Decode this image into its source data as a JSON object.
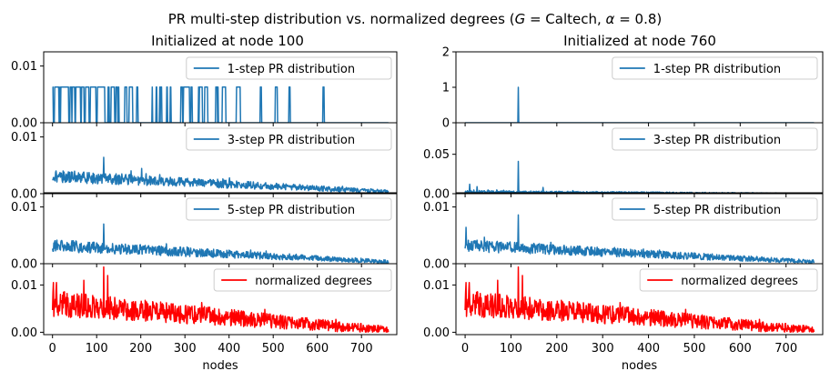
{
  "suptitle_parts": [
    "PR multi-step distribution vs. normalized degrees (",
    "G",
    " = Caltech, ",
    "α",
    " = 0.8)"
  ],
  "colors": {
    "pr": "#1f77b4",
    "degree": "#ff0000"
  },
  "chart_data": [
    {
      "type": "line",
      "column": "left",
      "title": "Initialized at node 100",
      "xlabel": "nodes",
      "xlim": [
        -20,
        780
      ],
      "xticks": [
        0,
        100,
        200,
        300,
        400,
        500,
        600,
        700
      ],
      "panels": [
        {
          "legend": "1-step PR distribution",
          "color": "#1f77b4",
          "ylim": [
            0,
            0.0125
          ],
          "yticks": [
            {
              "v": 0,
              "label": "0.00"
            },
            {
              "v": 0.01,
              "label": "0.01"
            }
          ],
          "kind": "pulses",
          "n": 762,
          "pulse_height": 0.0063,
          "pulse_max_x": 632,
          "seed": 11
        },
        {
          "legend": "3-step PR distribution",
          "color": "#1f77b4",
          "ylim": [
            0,
            0.0125
          ],
          "yticks": [
            {
              "v": 0,
              "label": "0.00"
            },
            {
              "v": 0.01,
              "label": "0.01"
            }
          ],
          "kind": "noisy",
          "n": 762,
          "base": 0.003,
          "decay": 0.0027,
          "noise": 0.0011,
          "seed": 21,
          "peaks": [
            [
              116,
              0.0064
            ]
          ]
        },
        {
          "legend": "5-step PR distribution",
          "color": "#1f77b4",
          "ylim": [
            0,
            0.0125
          ],
          "yticks": [
            {
              "v": 0,
              "label": "0.00"
            },
            {
              "v": 0.01,
              "label": "0.01"
            }
          ],
          "kind": "noisy",
          "n": 762,
          "base": 0.0031,
          "decay": 0.0028,
          "noise": 0.0011,
          "seed": 31,
          "peaks": [
            [
              116,
              0.007
            ]
          ]
        },
        {
          "legend": "normalized degrees",
          "color": "#ff0000",
          "ylim": [
            -0.0005,
            0.0145
          ],
          "yticks": [
            {
              "v": 0,
              "label": "0.00"
            },
            {
              "v": 0.01,
              "label": "0.01"
            }
          ],
          "kind": "noisy",
          "n": 762,
          "base": 0.0058,
          "decay": 0.0055,
          "noise": 0.0028,
          "seed": 41,
          "peaks": [
            [
              116,
              0.0138
            ],
            [
              125,
              0.012
            ],
            [
              71,
              0.011
            ],
            [
              2,
              0.0105
            ]
          ]
        }
      ]
    },
    {
      "type": "line",
      "column": "right",
      "title": "Initialized at node 760",
      "xlabel": "nodes",
      "xlim": [
        -20,
        780
      ],
      "xticks": [
        0,
        100,
        200,
        300,
        400,
        500,
        600,
        700
      ],
      "panels": [
        {
          "legend": "1-step PR distribution",
          "color": "#1f77b4",
          "ylim": [
            0,
            2
          ],
          "yticks": [
            {
              "v": 0,
              "label": "0"
            },
            {
              "v": 1,
              "label": "1"
            },
            {
              "v": 2,
              "label": "2"
            }
          ],
          "kind": "spike",
          "n": 762,
          "spike_x": 116,
          "spike_y": 1.0
        },
        {
          "legend": "3-step PR distribution",
          "color": "#1f77b4",
          "ylim": [
            0,
            0.09
          ],
          "yticks": [
            {
              "v": 0,
              "label": "0.00"
            },
            {
              "v": 0.05,
              "label": "0.05"
            }
          ],
          "kind": "noisy",
          "n": 762,
          "base": 0.0022,
          "decay": 0.002,
          "noise": 0.0016,
          "seed": 51,
          "peaks": [
            [
              116,
              0.041
            ],
            [
              10,
              0.012
            ],
            [
              26,
              0.009
            ],
            [
              170,
              0.008
            ]
          ]
        },
        {
          "legend": "5-step PR distribution",
          "color": "#1f77b4",
          "ylim": [
            0,
            0.0125
          ],
          "yticks": [
            {
              "v": 0,
              "label": "0.00"
            },
            {
              "v": 0.01,
              "label": "0.01"
            }
          ],
          "kind": "noisy",
          "n": 762,
          "base": 0.0031,
          "decay": 0.0028,
          "noise": 0.0011,
          "seed": 61,
          "peaks": [
            [
              116,
              0.0086
            ],
            [
              2,
              0.0064
            ]
          ]
        },
        {
          "legend": "normalized degrees",
          "color": "#ff0000",
          "ylim": [
            -0.0005,
            0.0145
          ],
          "yticks": [
            {
              "v": 0,
              "label": "0.00"
            },
            {
              "v": 0.01,
              "label": "0.01"
            }
          ],
          "kind": "noisy",
          "n": 762,
          "base": 0.0058,
          "decay": 0.0055,
          "noise": 0.0028,
          "seed": 41,
          "peaks": [
            [
              116,
              0.0138
            ],
            [
              125,
              0.012
            ],
            [
              71,
              0.011
            ],
            [
              2,
              0.0105
            ]
          ]
        }
      ]
    }
  ]
}
